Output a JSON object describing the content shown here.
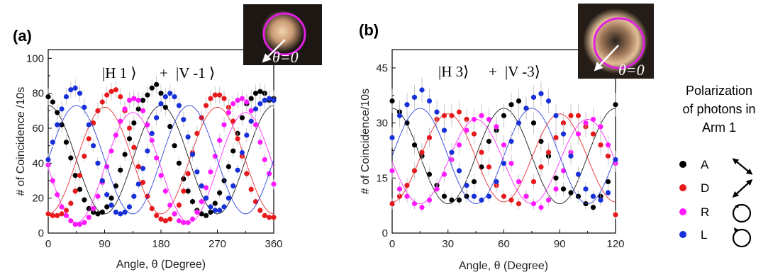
{
  "chart_data": [
    {
      "type": "scatter",
      "panel_label": "(a)",
      "state_label": {
        "left_ket": "|H 1 ⟩",
        "plus": "+",
        "right_ket": "|V -1 ⟩"
      },
      "inset_label": "θ=0",
      "xlabel": "Angle, θ (Degree)",
      "ylabel": "# of Coincidence /10s",
      "xlim": [
        0,
        360
      ],
      "ylim": [
        0,
        105
      ],
      "xticks": [
        "0",
        "90",
        "180",
        "270",
        "360"
      ],
      "yticks": [
        "0",
        "20",
        "40",
        "60",
        "80",
        "100"
      ],
      "x_step": 7.2,
      "series": [
        {
          "name": "A",
          "color": "#000000",
          "fit": {
            "offset": 42,
            "amplitude": 31,
            "period": 180,
            "peak": 0
          },
          "values": [
            78,
            75,
            69,
            62,
            52,
            43,
            33,
            25,
            19,
            14,
            12,
            11,
            12,
            15,
            20,
            27,
            36,
            45,
            54,
            63,
            71,
            76,
            79,
            83,
            85,
            80,
            72,
            61,
            50,
            40,
            31,
            24,
            18,
            13,
            11,
            10,
            12,
            17,
            23,
            30,
            38,
            47,
            57,
            66,
            74,
            77,
            80,
            81,
            80,
            76,
            77
          ]
        },
        {
          "name": "D",
          "color": "#e8191c",
          "fit": {
            "offset": 41.5,
            "amplitude": 30.5,
            "period": 180,
            "peak": 90
          },
          "values": [
            11,
            10,
            10,
            11,
            13,
            17,
            24,
            33,
            44,
            54,
            63,
            70,
            75,
            79,
            81,
            82,
            78,
            70,
            60,
            49,
            38,
            29,
            21,
            14,
            10,
            8,
            7,
            8,
            11,
            16,
            24,
            34,
            46,
            57,
            66,
            73,
            77,
            79,
            79,
            77,
            72,
            64,
            54,
            44,
            34,
            25,
            18,
            13,
            10,
            9,
            9
          ]
        },
        {
          "name": "R",
          "color": "#ff1aff",
          "fit": {
            "offset": 37.5,
            "amplitude": 31.5,
            "period": 180,
            "peak": 135
          },
          "values": [
            39,
            30,
            22,
            15,
            10,
            7,
            5,
            5,
            6,
            9,
            14,
            21,
            29,
            38,
            47,
            56,
            64,
            71,
            76,
            77,
            76,
            70,
            62,
            53,
            43,
            33,
            24,
            16,
            11,
            7,
            6,
            6,
            8,
            12,
            18,
            26,
            35,
            44,
            53,
            62,
            69,
            74,
            76,
            77,
            75,
            70,
            62,
            52,
            42,
            34,
            28
          ]
        },
        {
          "name": "L",
          "color": "#1730d9",
          "fit": {
            "offset": 42,
            "amplitude": 31,
            "period": 180,
            "peak": 45
          },
          "values": [
            42,
            52,
            62,
            71,
            78,
            82,
            83,
            80,
            72,
            62,
            50,
            40,
            30,
            22,
            16,
            12,
            11,
            12,
            15,
            21,
            28,
            37,
            47,
            57,
            66,
            74,
            78,
            80,
            78,
            73,
            65,
            55,
            45,
            35,
            27,
            20,
            15,
            13,
            13,
            15,
            20,
            27,
            36,
            46,
            56,
            64,
            71,
            74,
            76,
            77,
            76
          ]
        }
      ]
    },
    {
      "type": "scatter",
      "panel_label": "(b)",
      "state_label": {
        "left_ket": "|H  3⟩",
        "plus": "+",
        "right_ket": "|V -3⟩"
      },
      "inset_label": "θ=0",
      "xlabel": "Angle, θ (Degree)",
      "ylabel": "# of Coincidence/10s",
      "xlim": [
        0,
        120
      ],
      "ylim": [
        0,
        50
      ],
      "xticks": [
        "0",
        "30",
        "60",
        "90",
        "120"
      ],
      "yticks": [
        "0",
        "15",
        "30",
        "45"
      ],
      "x_step": 4,
      "series": [
        {
          "name": "A",
          "color": "#000000",
          "fit": {
            "offset": 21,
            "amplitude": 13,
            "period": 60,
            "peak": 0
          },
          "values": [
            36,
            33,
            30,
            24,
            21,
            16,
            13,
            10,
            9,
            9,
            10,
            14,
            18,
            25,
            28,
            32,
            35,
            36,
            34,
            30,
            25,
            21,
            15,
            12,
            11,
            10,
            8,
            7,
            10,
            14,
            35
          ]
        },
        {
          "name": "D",
          "color": "#e8191c",
          "fit": {
            "offset": 20.5,
            "amplitude": 12,
            "period": 60,
            "peak": 30
          },
          "values": [
            8,
            10,
            13,
            17,
            22,
            26,
            31,
            32,
            32,
            33,
            31,
            27,
            22,
            18,
            13,
            10,
            9,
            8,
            10,
            14,
            18,
            22,
            26,
            30,
            32,
            32,
            29,
            27,
            24,
            21,
            5
          ]
        },
        {
          "name": "R",
          "color": "#ff1aff",
          "fit": {
            "offset": 19.5,
            "amplitude": 11.5,
            "period": 60,
            "peak": 45
          },
          "values": [
            17,
            12,
            10,
            8,
            7,
            9,
            12,
            16,
            20,
            24,
            28,
            31,
            32,
            31,
            29,
            24,
            19,
            14,
            10,
            8,
            7,
            9,
            12,
            17,
            22,
            27,
            30,
            31,
            29,
            24,
            19
          ]
        },
        {
          "name": "L",
          "color": "#1730d9",
          "fit": {
            "offset": 21,
            "amplitude": 13,
            "period": 60,
            "peak": 15
          },
          "values": [
            26,
            32,
            35,
            37,
            39,
            36,
            33,
            28,
            22,
            17,
            13,
            10,
            9,
            10,
            14,
            19,
            25,
            30,
            34,
            37,
            38,
            36,
            32,
            27,
            21,
            16,
            12,
            10,
            9,
            11,
            20
          ]
        }
      ]
    }
  ],
  "legend": {
    "title_lines": [
      "Polarization",
      "of photons in",
      "Arm 1"
    ],
    "items": [
      {
        "label": "A",
        "color": "#000000",
        "symbol": "arrow-diag-down"
      },
      {
        "label": "D",
        "color": "#e8191c",
        "symbol": "arrow-diag-up"
      },
      {
        "label": "R",
        "color": "#ff1aff",
        "symbol": "circle-arrow-cw"
      },
      {
        "label": "L",
        "color": "#1730d9",
        "symbol": "circle-arrow-ccw"
      }
    ]
  }
}
